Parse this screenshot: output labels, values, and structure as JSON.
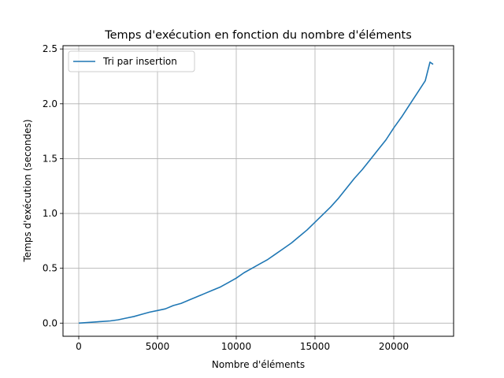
{
  "chart_data": {
    "type": "line",
    "title": "Temps d'exécution en fonction du nombre d'éléments",
    "xlabel": "Nombre d'éléments",
    "ylabel": "Temps d'exécution (secondes)",
    "xlim": [
      -1000,
      23800
    ],
    "ylim": [
      -0.12,
      2.53
    ],
    "xticks": [
      0,
      5000,
      10000,
      15000,
      20000
    ],
    "xtick_labels": [
      "0",
      "5000",
      "10000",
      "15000",
      "20000"
    ],
    "yticks": [
      0.0,
      0.5,
      1.0,
      1.5,
      2.0,
      2.5
    ],
    "ytick_labels": [
      "0.0",
      "0.5",
      "1.0",
      "1.5",
      "2.0",
      "2.5"
    ],
    "grid": true,
    "legend_position": "upper-left",
    "series": [
      {
        "name": "Tri par insertion",
        "color": "#1f77b4",
        "x": [
          0,
          1000,
          2000,
          2500,
          3000,
          3500,
          4000,
          4500,
          5000,
          5500,
          6000,
          6500,
          7000,
          7500,
          8000,
          8500,
          9000,
          9500,
          10000,
          10500,
          11000,
          11500,
          12000,
          12500,
          13000,
          13500,
          14000,
          14500,
          15000,
          15500,
          16000,
          16500,
          17000,
          17500,
          18000,
          18500,
          19000,
          19500,
          20000,
          20500,
          21000,
          21500,
          22000,
          22300,
          22500
        ],
        "y": [
          0.0,
          0.01,
          0.02,
          0.03,
          0.045,
          0.06,
          0.08,
          0.1,
          0.115,
          0.13,
          0.16,
          0.18,
          0.21,
          0.24,
          0.27,
          0.3,
          0.33,
          0.37,
          0.41,
          0.46,
          0.5,
          0.54,
          0.58,
          0.63,
          0.68,
          0.73,
          0.79,
          0.85,
          0.92,
          0.99,
          1.06,
          1.14,
          1.23,
          1.32,
          1.4,
          1.49,
          1.58,
          1.67,
          1.78,
          1.88,
          1.99,
          2.1,
          2.21,
          2.38,
          2.36
        ]
      }
    ]
  }
}
